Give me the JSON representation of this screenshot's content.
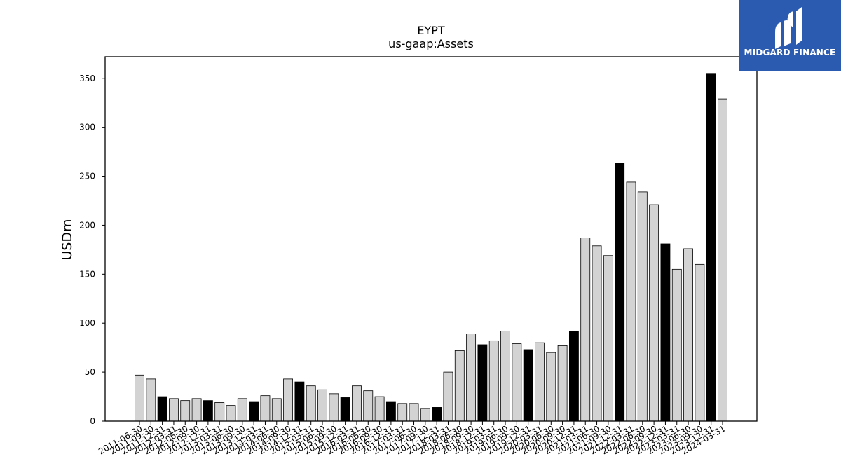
{
  "logo": {
    "text": "MIDGARD FINANCE"
  },
  "chart_data": {
    "type": "bar",
    "title": "EYPT",
    "subtitle": "us-gaap:Assets",
    "ylabel": "USDm",
    "xlabel": "",
    "ylim": [
      0,
      372
    ],
    "yticks": [
      0,
      50,
      100,
      150,
      200,
      250,
      300,
      350
    ],
    "grid": false,
    "colors": {
      "quarter": "#d3d3d3",
      "year_end": "#000000",
      "edge": "#000000",
      "brand": "#2b5bb0"
    },
    "categories": [
      "2011-06-30",
      "2011-09-30",
      "2011-12-31",
      "2012-03-31",
      "2012-06-30",
      "2012-09-30",
      "2012-12-31",
      "2013-03-31",
      "2013-06-30",
      "2013-09-30",
      "2013-12-31",
      "2014-03-31",
      "2014-06-30",
      "2014-09-30",
      "2014-12-31",
      "2015-03-31",
      "2015-06-30",
      "2015-09-30",
      "2015-12-31",
      "2016-03-31",
      "2016-06-30",
      "2016-09-30",
      "2016-12-31",
      "2017-03-31",
      "2017-06-30",
      "2017-09-30",
      "2017-12-31",
      "2018-03-31",
      "2018-06-30",
      "2018-09-30",
      "2018-12-31",
      "2019-03-31",
      "2019-06-30",
      "2019-09-30",
      "2019-12-31",
      "2020-03-31",
      "2020-06-30",
      "2020-09-30",
      "2020-12-31",
      "2021-03-31",
      "2021-06-30",
      "2021-09-30",
      "2021-12-31",
      "2022-03-31",
      "2022-06-30",
      "2022-09-30",
      "2022-12-31",
      "2023-03-31",
      "2023-06-30",
      "2023-09-30",
      "2023-12-31",
      "2024-03-31"
    ],
    "values": [
      47,
      43,
      25,
      23,
      21,
      23,
      21,
      19,
      16,
      23,
      20,
      26,
      23,
      43,
      40,
      36,
      32,
      28,
      24,
      36,
      31,
      25,
      20,
      18,
      18,
      13,
      14,
      50,
      72,
      89,
      78,
      82,
      92,
      79,
      73,
      80,
      70,
      77,
      92,
      187,
      179,
      169,
      263,
      244,
      234,
      221,
      181,
      155,
      176,
      160,
      355,
      329
    ],
    "highlighted": [
      false,
      false,
      true,
      false,
      false,
      false,
      true,
      false,
      false,
      false,
      true,
      false,
      false,
      false,
      true,
      false,
      false,
      false,
      true,
      false,
      false,
      false,
      true,
      false,
      false,
      false,
      true,
      false,
      false,
      false,
      true,
      false,
      false,
      false,
      true,
      false,
      false,
      false,
      true,
      false,
      false,
      false,
      true,
      false,
      false,
      false,
      true,
      false,
      false,
      false,
      true,
      false
    ]
  }
}
